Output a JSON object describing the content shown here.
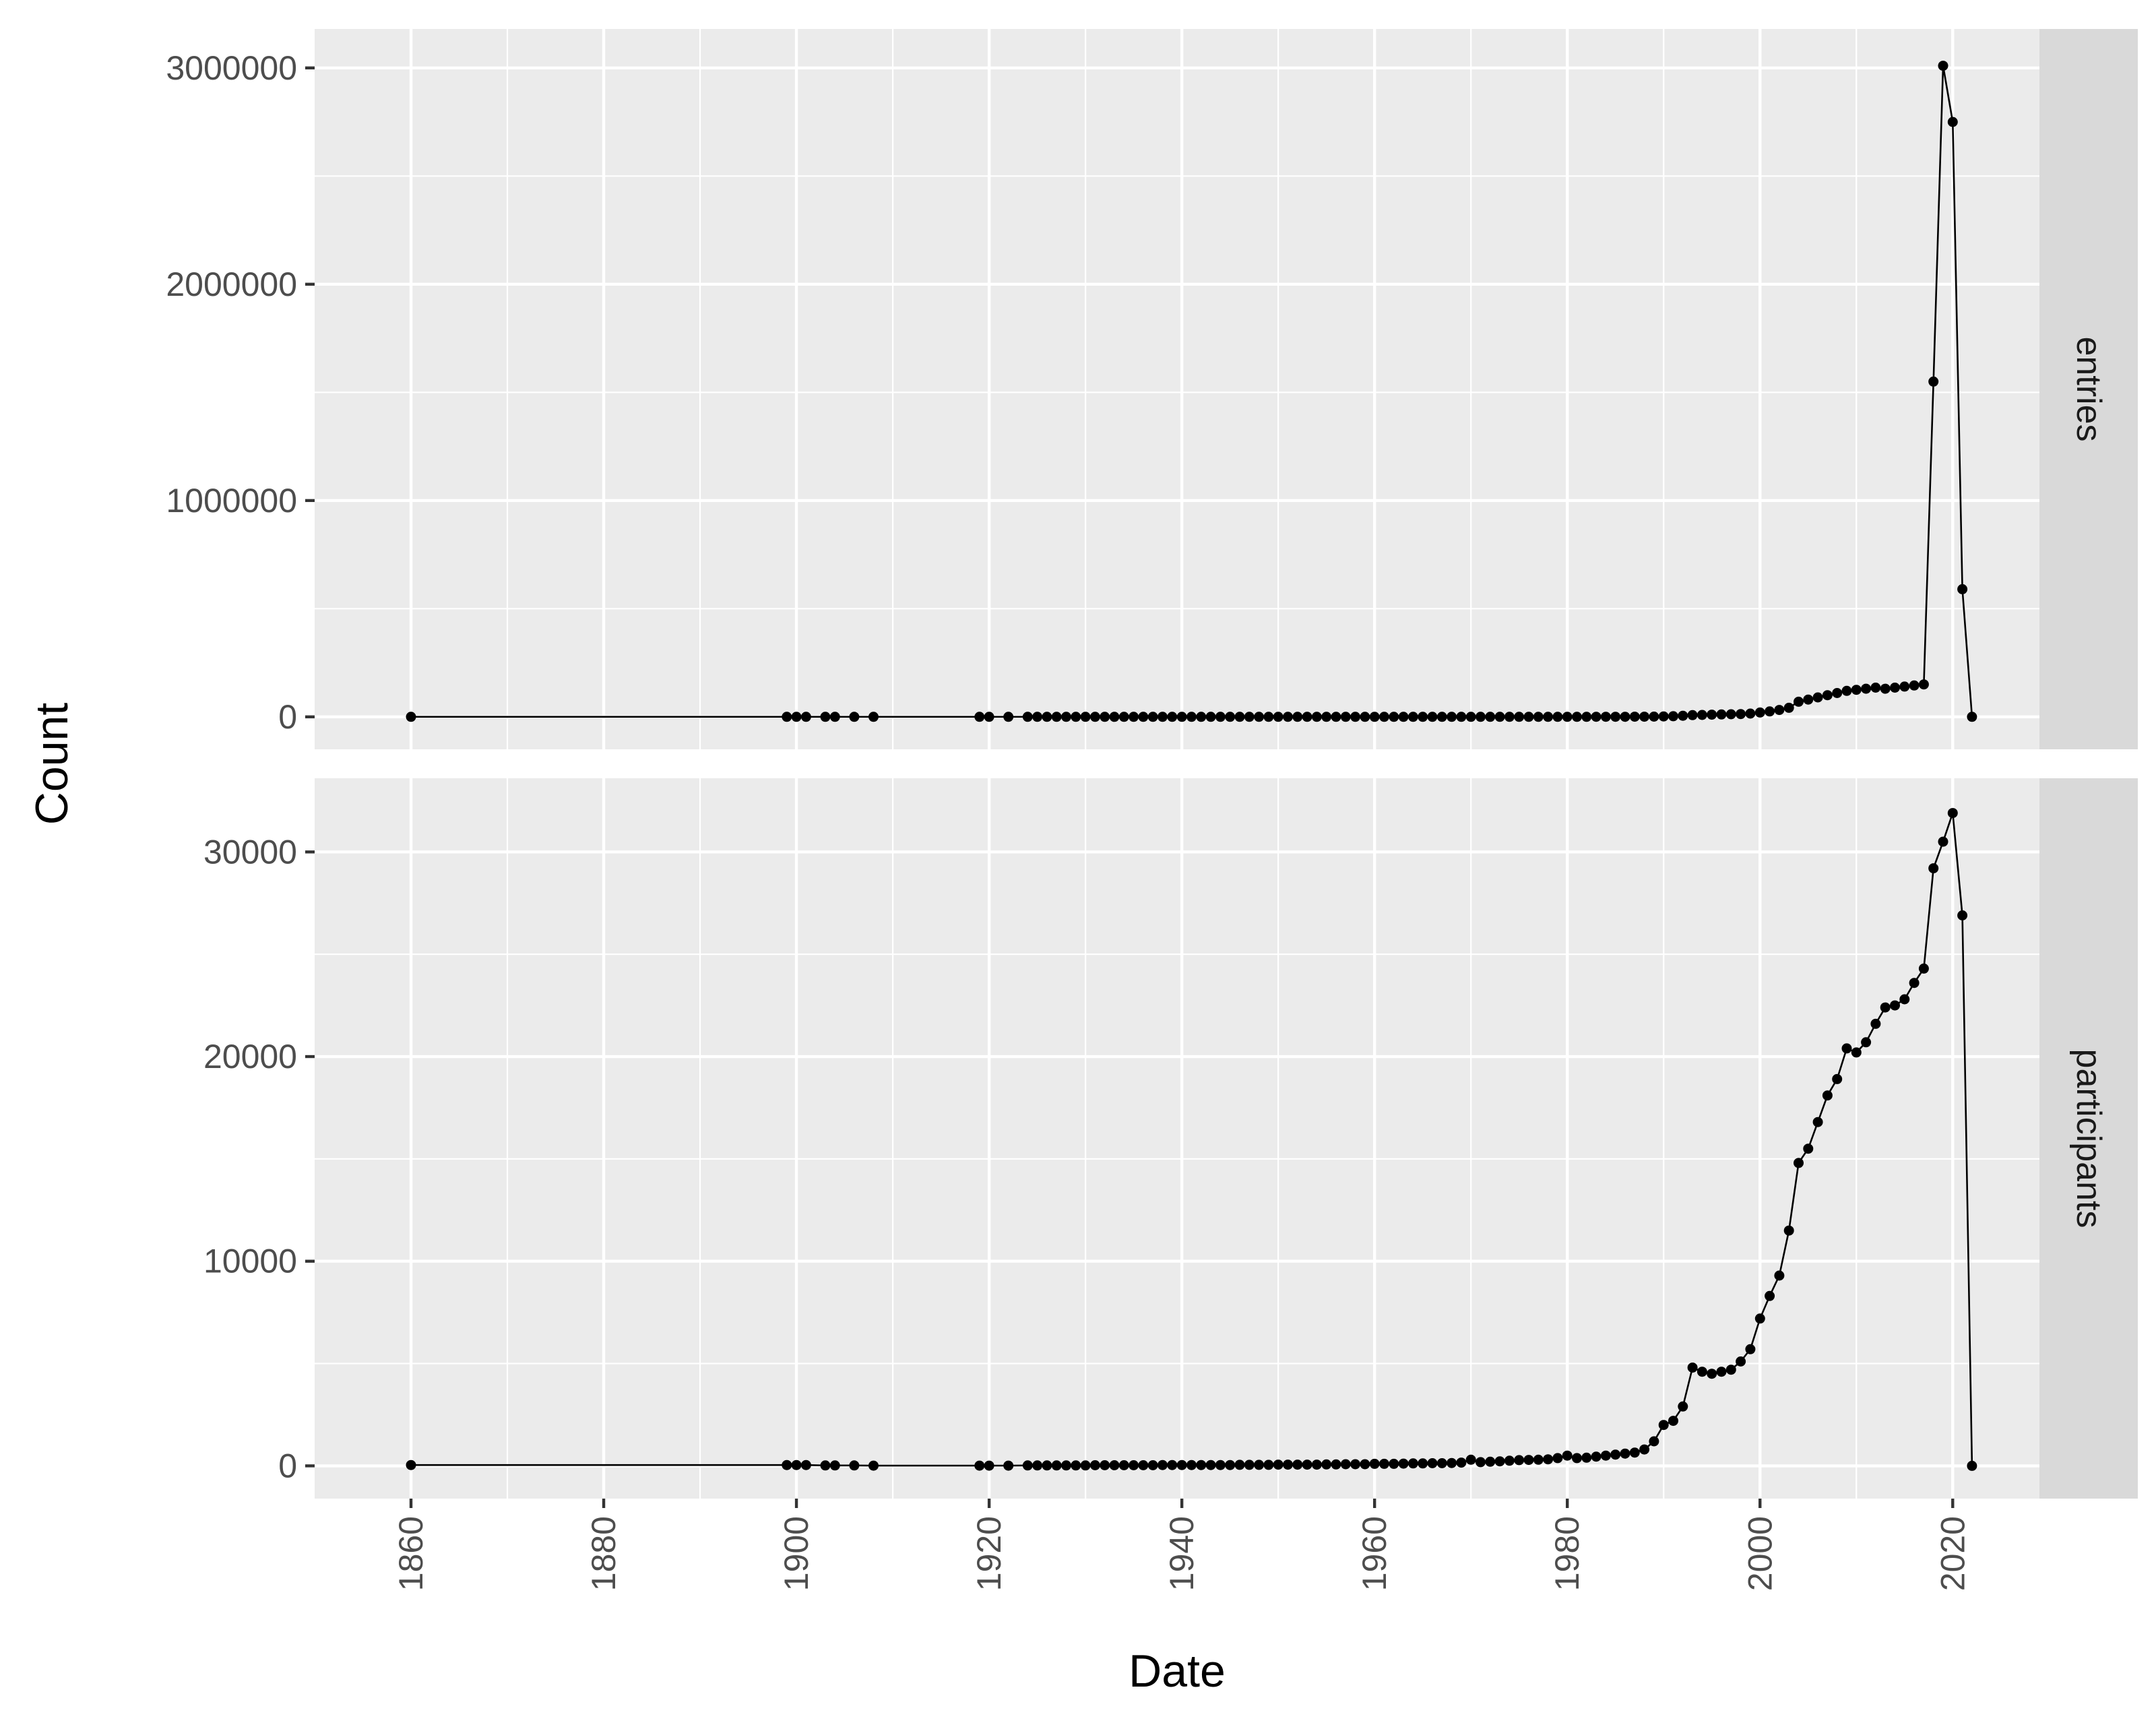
{
  "chart_data": {
    "type": "line",
    "layout": "faceted, two panels stacked vertically, independent y scales, shared x axis",
    "xlabel": "Date",
    "ylabel": "Count",
    "xlim": [
      1850,
      2029
    ],
    "x_ticks": [
      1860,
      1880,
      1900,
      1920,
      1940,
      1960,
      1980,
      2000,
      2020
    ],
    "x_tick_labels": [
      "1860",
      "1880",
      "1900",
      "1920",
      "1940",
      "1960",
      "1980",
      "2000",
      "2020"
    ],
    "grid": true,
    "line_color": "#000000",
    "panel_bg": "#ebebeb",
    "strip_bg": "#d9d9d9",
    "panels": [
      {
        "strip_label": "entries",
        "ylim": [
          -150000,
          3180000
        ],
        "y_ticks": [
          0,
          1000000,
          2000000,
          3000000
        ],
        "y_tick_labels": [
          "0",
          "1000000",
          "2000000",
          "3000000"
        ],
        "x": [
          1860,
          1899,
          1900,
          1901,
          1903,
          1904,
          1906,
          1908,
          1919,
          1920,
          1922,
          1924,
          1925,
          1926,
          1927,
          1928,
          1929,
          1930,
          1931,
          1932,
          1933,
          1934,
          1935,
          1936,
          1937,
          1938,
          1939,
          1940,
          1941,
          1942,
          1943,
          1944,
          1945,
          1946,
          1947,
          1948,
          1949,
          1950,
          1951,
          1952,
          1953,
          1954,
          1955,
          1956,
          1957,
          1958,
          1959,
          1960,
          1961,
          1962,
          1963,
          1964,
          1965,
          1966,
          1967,
          1968,
          1969,
          1970,
          1971,
          1972,
          1973,
          1974,
          1975,
          1976,
          1977,
          1978,
          1979,
          1980,
          1981,
          1982,
          1983,
          1984,
          1985,
          1986,
          1987,
          1988,
          1989,
          1990,
          1991,
          1992,
          1993,
          1994,
          1995,
          1996,
          1997,
          1998,
          1999,
          2000,
          2001,
          2002,
          2003,
          2004,
          2005,
          2006,
          2007,
          2008,
          2009,
          2010,
          2011,
          2012,
          2013,
          2014,
          2015,
          2016,
          2017,
          2018,
          2019,
          2020,
          2021,
          2022
        ],
        "values": [
          0,
          0,
          0,
          0,
          0,
          0,
          0,
          0,
          0,
          0,
          0,
          0,
          0,
          0,
          0,
          0,
          0,
          0,
          0,
          0,
          0,
          0,
          0,
          0,
          0,
          0,
          0,
          0,
          0,
          0,
          0,
          0,
          0,
          0,
          0,
          0,
          0,
          0,
          0,
          0,
          0,
          0,
          0,
          0,
          0,
          0,
          0,
          0,
          0,
          0,
          0,
          0,
          0,
          0,
          0,
          0,
          0,
          100,
          100,
          100,
          100,
          100,
          100,
          100,
          100,
          200,
          200,
          300,
          300,
          300,
          400,
          400,
          500,
          600,
          700,
          900,
          1200,
          2000,
          3000,
          5000,
          8000,
          9000,
          10000,
          11000,
          12000,
          13000,
          15000,
          20000,
          25000,
          32000,
          42000,
          70000,
          80000,
          90000,
          100000,
          110000,
          120000,
          125000,
          130000,
          135000,
          130000,
          135000,
          140000,
          145000,
          150000,
          1550000,
          3010000,
          2750000,
          590000,
          0
        ]
      },
      {
        "strip_label": "participants",
        "ylim": [
          -1600,
          33600
        ],
        "y_ticks": [
          0,
          10000,
          20000,
          30000
        ],
        "y_tick_labels": [
          "0",
          "10000",
          "20000",
          "30000"
        ],
        "x": [
          1860,
          1899,
          1900,
          1901,
          1903,
          1904,
          1906,
          1908,
          1919,
          1920,
          1922,
          1924,
          1925,
          1926,
          1927,
          1928,
          1929,
          1930,
          1931,
          1932,
          1933,
          1934,
          1935,
          1936,
          1937,
          1938,
          1939,
          1940,
          1941,
          1942,
          1943,
          1944,
          1945,
          1946,
          1947,
          1948,
          1949,
          1950,
          1951,
          1952,
          1953,
          1954,
          1955,
          1956,
          1957,
          1958,
          1959,
          1960,
          1961,
          1962,
          1963,
          1964,
          1965,
          1966,
          1967,
          1968,
          1969,
          1970,
          1971,
          1972,
          1973,
          1974,
          1975,
          1976,
          1977,
          1978,
          1979,
          1980,
          1981,
          1982,
          1983,
          1984,
          1985,
          1986,
          1987,
          1988,
          1989,
          1990,
          1991,
          1992,
          1993,
          1994,
          1995,
          1996,
          1997,
          1998,
          1999,
          2000,
          2001,
          2002,
          2003,
          2004,
          2005,
          2006,
          2007,
          2008,
          2009,
          2010,
          2011,
          2012,
          2013,
          2014,
          2015,
          2016,
          2017,
          2018,
          2019,
          2020,
          2021,
          2022
        ],
        "values": [
          40,
          40,
          40,
          40,
          20,
          20,
          20,
          10,
          10,
          10,
          10,
          20,
          20,
          20,
          20,
          20,
          20,
          20,
          30,
          30,
          30,
          30,
          30,
          30,
          30,
          40,
          40,
          40,
          40,
          40,
          40,
          40,
          40,
          50,
          50,
          50,
          50,
          60,
          60,
          60,
          60,
          60,
          70,
          70,
          80,
          80,
          80,
          100,
          100,
          100,
          110,
          120,
          120,
          130,
          130,
          140,
          160,
          300,
          180,
          200,
          220,
          250,
          280,
          290,
          300,
          320,
          380,
          500,
          380,
          400,
          450,
          500,
          550,
          600,
          650,
          800,
          1200,
          2000,
          2200,
          2900,
          4800,
          4600,
          4500,
          4600,
          4700,
          5100,
          5700,
          7200,
          8300,
          9300,
          11500,
          14800,
          15500,
          16800,
          18100,
          18900,
          20400,
          20200,
          20700,
          21600,
          22400,
          22500,
          22800,
          23600,
          24300,
          29200,
          30500,
          31900,
          26900,
          0
        ]
      }
    ]
  }
}
